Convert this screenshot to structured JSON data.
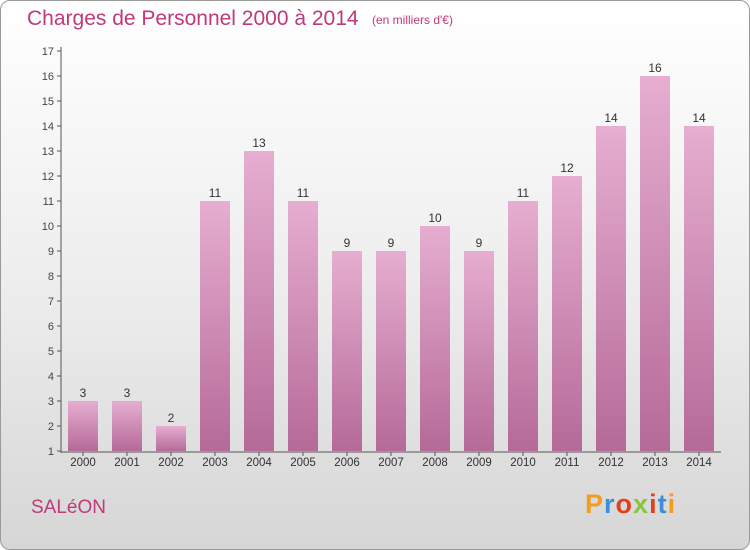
{
  "header": {
    "title": "Charges de Personnel 2000 à 2014",
    "subtitle": "(en milliers d'€)"
  },
  "footer": {
    "commune": "SALéON",
    "brand_letters": [
      "P",
      "r",
      "o",
      "x",
      "i",
      "t",
      "i"
    ],
    "brand_colors": [
      "#f39c1e",
      "#3a8fd8",
      "#e2401c",
      "#8bc43f",
      "#e2401c",
      "#3a8fd8",
      "#f39c1e"
    ]
  },
  "colors": {
    "bar_top": "#e6aed0",
    "bar_bottom": "#b56a98",
    "text": "#c0397a",
    "axis": "#555555"
  },
  "chart_data": {
    "type": "bar",
    "title": "Charges de Personnel 2000 à 2014",
    "subtitle": "(en milliers d'€)",
    "categories": [
      "2000",
      "2001",
      "2002",
      "2003",
      "2004",
      "2005",
      "2006",
      "2007",
      "2008",
      "2009",
      "2010",
      "2011",
      "2012",
      "2013",
      "2014"
    ],
    "values": [
      3,
      3,
      2,
      11,
      13,
      11,
      9,
      9,
      10,
      9,
      11,
      12,
      14,
      16,
      14
    ],
    "data_labels": [
      "3",
      "3",
      "2",
      "11",
      "13",
      "11",
      "9",
      "9",
      "10",
      "9",
      "11",
      "12",
      "14",
      "16",
      "14"
    ],
    "yticks": [
      "1",
      "2",
      "3",
      "4",
      "5",
      "6",
      "7",
      "8",
      "9",
      "10",
      "11",
      "12",
      "13",
      "14",
      "15",
      "16",
      "17"
    ],
    "ylim": [
      1,
      17
    ],
    "grid": false,
    "legend": "none"
  }
}
